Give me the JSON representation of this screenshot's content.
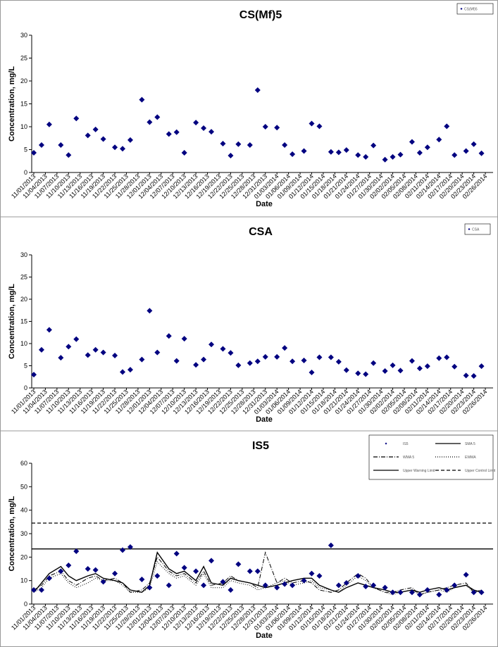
{
  "chart_data": [
    {
      "type": "scatter",
      "title": "CS(Mf)5",
      "xlabel": "Date",
      "ylabel": "Concentration, mg/L",
      "xlim": [
        "11/01/2013",
        "02/28/2014"
      ],
      "ylim": [
        0,
        30
      ],
      "yticks": [
        0,
        5,
        10,
        15,
        20,
        25,
        30
      ],
      "legend": "upper right",
      "xticks": [
        "11/01/2013",
        "11/04/2013",
        "11/07/2013",
        "11/10/2013",
        "11/13/2013",
        "11/16/2013",
        "11/19/2013",
        "11/22/2013",
        "11/25/2013",
        "11/28/2013",
        "12/01/2013",
        "12/04/2013",
        "12/07/2013",
        "12/10/2013",
        "12/13/2013",
        "12/16/2013",
        "12/19/2013",
        "12/22/2013",
        "12/25/2013",
        "12/28/2013",
        "12/31/2013",
        "01/03/2014",
        "01/06/2014",
        "01/09/2014",
        "01/12/2014",
        "01/15/2014",
        "01/18/2014",
        "01/21/2014",
        "01/24/2014",
        "01/27/2014",
        "01/30/2014",
        "02/02/2014",
        "02/05/2014",
        "02/08/2014",
        "02/11/2014",
        "02/14/2014",
        "02/17/2014",
        "02/20/2014",
        "02/23/2014",
        "02/26/2014"
      ],
      "x": [
        "11/01/2013",
        "11/03/2013",
        "11/05/2013",
        "11/08/2013",
        "11/10/2013",
        "11/12/2013",
        "11/15/2013",
        "11/17/2013",
        "11/19/2013",
        "11/22/2013",
        "11/24/2013",
        "11/26/2013",
        "11/29/2013",
        "12/01/2013",
        "12/03/2013",
        "12/06/2013",
        "12/08/2013",
        "12/10/2013",
        "12/13/2013",
        "12/15/2013",
        "12/17/2013",
        "12/20/2013",
        "12/22/2013",
        "12/24/2013",
        "12/27/2013",
        "12/29/2013",
        "12/31/2013",
        "01/03/2014",
        "01/05/2014",
        "01/07/2014",
        "01/10/2014",
        "01/12/2014",
        "01/14/2014",
        "01/17/2014",
        "01/19/2014",
        "01/21/2014",
        "01/24/2014",
        "01/26/2014",
        "01/28/2014",
        "01/31/2014",
        "02/02/2014",
        "02/04/2014",
        "02/07/2014",
        "02/09/2014",
        "02/11/2014",
        "02/14/2014",
        "02/16/2014",
        "02/18/2014",
        "02/21/2014",
        "02/23/2014",
        "02/25/2014"
      ],
      "series": [
        {
          "name": "CS(Mf)5",
          "color": "#000080",
          "marker": "diamond",
          "values": [
            4.3,
            6,
            10.5,
            6,
            3.8,
            11.8,
            8.1,
            9.4,
            7.3,
            5.5,
            5.2,
            7.1,
            15.9,
            11,
            12.1,
            8.4,
            8.8,
            4.3,
            10.9,
            9.7,
            8.9,
            6.3,
            3.7,
            6.2,
            6,
            18,
            10,
            9.8,
            6,
            4,
            4.7,
            10.7,
            10.1,
            4.5,
            4.4,
            4.9,
            3.8,
            3.4,
            5.9,
            2.8,
            3.4,
            3.9,
            6.7,
            4.3,
            5.5,
            7.2,
            10.1,
            3.8,
            4.7,
            6.2,
            4.2
          ]
        }
      ]
    },
    {
      "type": "scatter",
      "title": "CSA",
      "xlabel": "Date",
      "ylabel": "Concentration, mg/L",
      "xlim": [
        "11/01/2013",
        "02/28/2014"
      ],
      "ylim": [
        0,
        30
      ],
      "yticks": [
        0,
        5,
        10,
        15,
        20,
        25,
        30
      ],
      "legend": "upper right",
      "xticks": [
        "11/01/2013",
        "11/04/2013",
        "11/07/2013",
        "11/10/2013",
        "11/13/2013",
        "11/16/2013",
        "11/19/2013",
        "11/22/2013",
        "11/25/2013",
        "11/28/2013",
        "12/01/2013",
        "12/04/2013",
        "12/07/2013",
        "12/10/2013",
        "12/13/2013",
        "12/16/2013",
        "12/19/2013",
        "12/22/2013",
        "12/25/2013",
        "12/28/2013",
        "12/31/2013",
        "01/03/2014",
        "01/06/2014",
        "01/09/2014",
        "01/12/2014",
        "01/15/2014",
        "01/18/2014",
        "01/21/2014",
        "01/24/2014",
        "01/27/2014",
        "01/30/2014",
        "02/02/2014",
        "02/05/2014",
        "02/08/2014",
        "02/11/2014",
        "02/14/2014",
        "02/17/2014",
        "02/20/2014",
        "02/23/2014",
        "02/26/2014"
      ],
      "x": [
        "11/01/2013",
        "11/03/2013",
        "11/05/2013",
        "11/08/2013",
        "11/10/2013",
        "11/12/2013",
        "11/15/2013",
        "11/17/2013",
        "11/19/2013",
        "11/22/2013",
        "11/24/2013",
        "11/26/2013",
        "11/29/2013",
        "12/01/2013",
        "12/03/2013",
        "12/06/2013",
        "12/08/2013",
        "12/10/2013",
        "12/13/2013",
        "12/15/2013",
        "12/17/2013",
        "12/20/2013",
        "12/22/2013",
        "12/24/2013",
        "12/27/2013",
        "12/29/2013",
        "12/31/2013",
        "01/03/2014",
        "01/05/2014",
        "01/07/2014",
        "01/10/2014",
        "01/12/2014",
        "01/14/2014",
        "01/17/2014",
        "01/19/2014",
        "01/21/2014",
        "01/24/2014",
        "01/26/2014",
        "01/28/2014",
        "01/31/2014",
        "02/02/2014",
        "02/04/2014",
        "02/07/2014",
        "02/09/2014",
        "02/11/2014",
        "02/14/2014",
        "02/16/2014",
        "02/18/2014",
        "02/21/2014",
        "02/23/2014",
        "02/25/2014"
      ],
      "series": [
        {
          "name": "CSA",
          "color": "#000080",
          "marker": "diamond",
          "values": [
            3,
            8.6,
            13.1,
            6.8,
            9.3,
            11,
            7.4,
            8.6,
            8,
            7.3,
            3.6,
            4.1,
            6.4,
            17.4,
            8,
            11.7,
            6.1,
            11.1,
            5.2,
            6.4,
            9.8,
            8.8,
            7.9,
            5.1,
            5.6,
            6,
            7,
            7,
            9,
            6,
            6.2,
            3.5,
            6.9,
            6.9,
            5.9,
            4,
            3.3,
            3.1,
            5.6,
            3.8,
            5.1,
            3.9,
            6.1,
            4.4,
            4.9,
            6.7,
            6.9,
            4.8,
            2.8,
            2.7,
            4.9
          ]
        }
      ]
    },
    {
      "type": "scatter",
      "title": "IS5",
      "xlabel": "Date",
      "ylabel": "Concentration, mg/L",
      "xlim": [
        "11/01/2013",
        "02/28/2014"
      ],
      "ylim": [
        0,
        60
      ],
      "yticks": [
        0,
        10,
        20,
        30,
        40,
        50,
        60
      ],
      "legend": "upper right",
      "xticks": [
        "11/01/2013",
        "11/04/2013",
        "11/07/2013",
        "11/10/2013",
        "11/13/2013",
        "11/16/2013",
        "11/19/2013",
        "11/22/2013",
        "11/25/2013",
        "11/28/2013",
        "12/01/2013",
        "12/04/2013",
        "12/07/2013",
        "12/10/2013",
        "12/13/2013",
        "12/16/2013",
        "12/19/2013",
        "12/22/2013",
        "12/25/2013",
        "12/28/2013",
        "12/31/2013",
        "01/03/2014",
        "01/06/2014",
        "01/09/2014",
        "01/12/2014",
        "01/15/2014",
        "01/18/2014",
        "01/21/2014",
        "01/24/2014",
        "01/27/2014",
        "01/30/2014",
        "02/02/2014",
        "02/05/2014",
        "02/08/2014",
        "02/11/2014",
        "02/14/2014",
        "02/17/2014",
        "02/20/2014",
        "02/23/2014",
        "02/26/2014"
      ],
      "x": [
        "11/01/2013",
        "11/03/2013",
        "11/05/2013",
        "11/08/2013",
        "11/10/2013",
        "11/12/2013",
        "11/15/2013",
        "11/17/2013",
        "11/19/2013",
        "11/22/2013",
        "11/24/2013",
        "11/26/2013",
        "11/29/2013",
        "12/01/2013",
        "12/03/2013",
        "12/06/2013",
        "12/08/2013",
        "12/10/2013",
        "12/13/2013",
        "12/15/2013",
        "12/17/2013",
        "12/20/2013",
        "12/22/2013",
        "12/24/2013",
        "12/27/2013",
        "12/29/2013",
        "12/31/2013",
        "01/03/2014",
        "01/05/2014",
        "01/07/2014",
        "01/10/2014",
        "01/12/2014",
        "01/14/2014",
        "01/17/2014",
        "01/19/2014",
        "01/21/2014",
        "01/24/2014",
        "01/26/2014",
        "01/28/2014",
        "01/31/2014",
        "02/02/2014",
        "02/04/2014",
        "02/07/2014",
        "02/09/2014",
        "02/11/2014",
        "02/14/2014",
        "02/16/2014",
        "02/18/2014",
        "02/21/2014",
        "02/23/2014",
        "02/25/2014"
      ],
      "series": [
        {
          "name": "IS5",
          "color": "#000080",
          "marker": "diamond",
          "values": [
            6,
            6,
            11,
            14,
            16.5,
            22.5,
            15,
            14.5,
            9.5,
            13,
            23,
            24.3,
            10.5,
            7,
            12,
            8,
            21.5,
            15.5,
            14,
            8,
            18.5,
            9.5,
            6,
            17,
            14,
            14,
            8,
            7,
            8.5,
            8,
            10,
            13,
            12,
            25,
            8,
            9,
            12,
            7.5,
            8,
            7,
            5,
            5,
            5,
            4,
            6,
            4,
            6,
            8,
            12.5,
            5,
            5
          ]
        },
        {
          "name": "SMA 5",
          "color": "#000000",
          "dash": "none",
          "values": [
            5,
            9,
            13,
            16,
            12,
            10,
            12,
            13,
            11,
            10,
            9,
            6,
            5,
            8,
            22,
            15,
            13,
            14,
            10,
            16,
            9,
            8,
            11,
            10,
            9,
            8,
            7,
            8,
            9,
            10,
            11,
            11,
            8,
            6,
            5,
            7,
            9,
            8,
            7,
            6,
            5,
            5,
            6,
            5,
            6,
            7,
            6,
            7,
            8,
            6,
            5
          ]
        },
        {
          "name": "WMA 5",
          "color": "#000000",
          "dash": "6,2,1,2",
          "values": [
            6,
            8,
            12,
            14,
            10,
            8,
            11,
            12,
            10,
            11,
            9,
            5,
            6,
            9,
            20,
            14,
            12,
            13,
            9,
            14,
            8,
            9,
            12,
            10,
            9,
            7,
            22,
            9,
            11,
            9,
            10,
            9,
            6,
            5,
            6,
            9,
            13,
            11,
            7,
            5,
            5,
            6,
            7,
            4,
            5,
            6,
            7,
            8,
            9,
            5,
            6
          ]
        },
        {
          "name": "EWMA",
          "color": "#000000",
          "dash": "1,2",
          "values": [
            5,
            7,
            11,
            13,
            9,
            7,
            9,
            11,
            10,
            10,
            8,
            5,
            5,
            7,
            18,
            13,
            11,
            12,
            8,
            13,
            7,
            7,
            10,
            9,
            8,
            6,
            7,
            9,
            10,
            8,
            9,
            10,
            7,
            6,
            5,
            8,
            12,
            10,
            7,
            5,
            4,
            5,
            6,
            4,
            5,
            6,
            5,
            7,
            8,
            5,
            6
          ]
        }
      ],
      "hlines": [
        {
          "name": "Upper Warning Limit",
          "value": 23.5,
          "color": "#000000",
          "dash": "none"
        },
        {
          "name": "Upper Control Limit",
          "value": 34.5,
          "color": "#000000",
          "dash": "5,3"
        }
      ]
    }
  ]
}
